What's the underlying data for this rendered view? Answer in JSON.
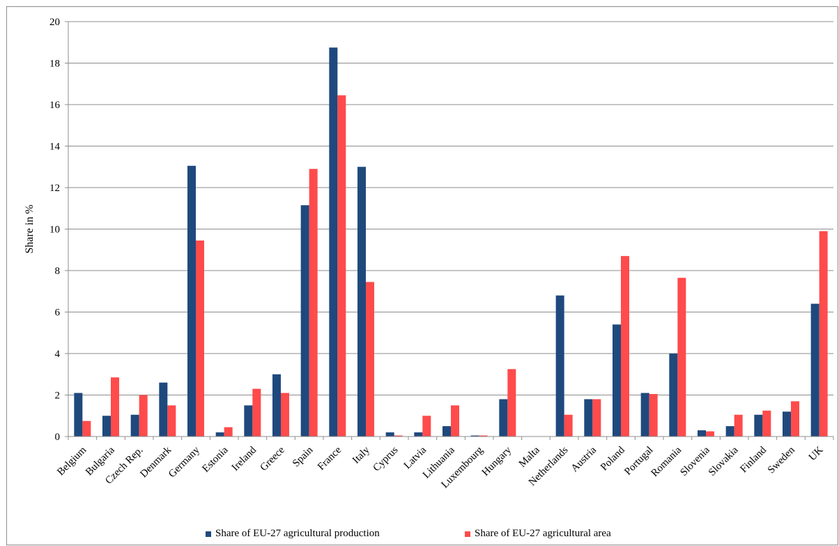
{
  "chart_data": {
    "type": "bar",
    "title": "",
    "xlabel": "",
    "ylabel": "Share in %",
    "ylim": [
      0,
      20
    ],
    "yticks": [
      0,
      2,
      4,
      6,
      8,
      10,
      12,
      14,
      16,
      18,
      20
    ],
    "grid": "horizontal",
    "legend_position": "bottom",
    "categories": [
      "Belgium",
      "Bulgaria",
      "Czech Rep.",
      "Denmark",
      "Germany",
      "Estonia",
      "Ireland",
      "Greece",
      "Spain",
      "France",
      "Italy",
      "Cyprus",
      "Latvia",
      "Lithuania",
      "Luxembourg",
      "Hungary",
      "Malta",
      "Netherlands",
      "Austria",
      "Poland",
      "Portugal",
      "Romania",
      "Slovenia",
      "Slovakia",
      "Finland",
      "Sweden",
      "UK"
    ],
    "series": [
      {
        "name": "Share of EU-27 agricultural production",
        "color": "#1f497d",
        "values": [
          2.1,
          1.0,
          1.05,
          2.6,
          13.05,
          0.2,
          1.5,
          3.0,
          11.15,
          18.75,
          13.0,
          0.2,
          0.2,
          0.5,
          0.05,
          1.8,
          0.0,
          6.8,
          1.8,
          5.4,
          2.1,
          4.0,
          0.3,
          0.5,
          1.05,
          1.2,
          6.4
        ]
      },
      {
        "name": "Share of EU-27 agricultural area",
        "color": "#ff4b4b",
        "values": [
          0.75,
          2.85,
          2.0,
          1.5,
          9.45,
          0.45,
          2.3,
          2.1,
          12.9,
          16.45,
          7.45,
          0.05,
          1.0,
          1.5,
          0.05,
          3.25,
          0.0,
          1.05,
          1.8,
          8.7,
          2.05,
          7.65,
          0.25,
          1.05,
          1.25,
          1.7,
          9.9
        ]
      }
    ]
  }
}
